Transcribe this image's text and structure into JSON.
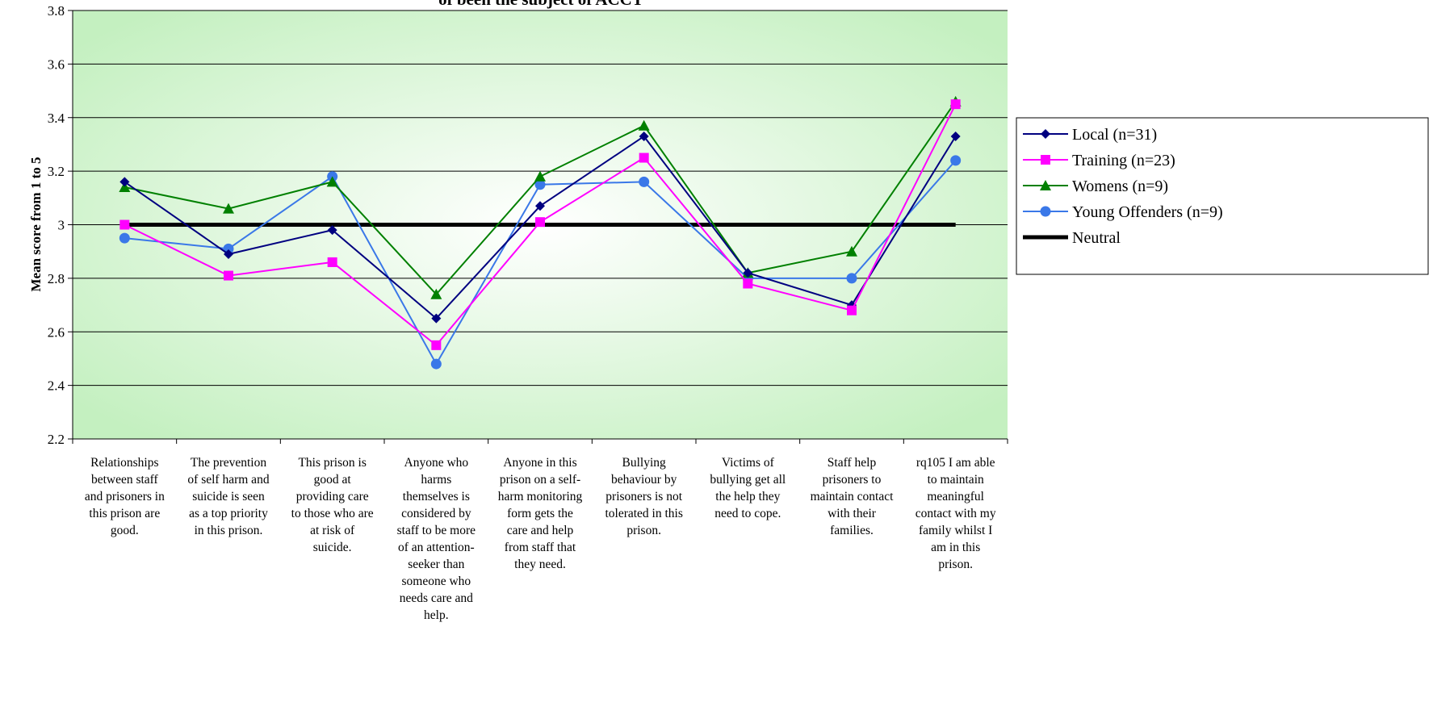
{
  "chart_data": {
    "type": "line",
    "title": "of been the subject of ACCT",
    "xlabel": "",
    "ylabel": "Mean score from 1 to 5",
    "ylim": [
      2.2,
      3.8
    ],
    "yticks": [
      "2.2",
      "2.4",
      "2.6",
      "2.8",
      "3",
      "3.2",
      "3.4",
      "3.6",
      "3.8"
    ],
    "grid": true,
    "legend_position": "right",
    "categories": [
      "Relationships between staff and prisoners in this prison are good.",
      "The prevention of self harm and suicide is seen as a top priority in this prison.",
      "This prison is good at providing care to those who are at risk of suicide.",
      "Anyone who harms themselves is considered by staff to be more of an attention-seeker than someone who needs care and help.",
      "Anyone in this prison on a self-harm monitoring form gets the care and help from staff that they need.",
      "Bullying behaviour by prisoners is not tolerated in this prison.",
      "Victims of bullying get all the help they need to cope.",
      "Staff help prisoners to maintain contact with their families.",
      "rq105 I am able to maintain meaningful contact with my family whilst I am in this prison."
    ],
    "category_lines": [
      [
        "Relationships",
        "between staff",
        "and prisoners in",
        "this prison are",
        "good."
      ],
      [
        "The prevention",
        "of self harm and",
        "suicide is seen",
        "as a top priority",
        "in this prison."
      ],
      [
        "This prison is",
        "good at",
        "providing care",
        "to those who are",
        "at risk of",
        "suicide."
      ],
      [
        "Anyone who",
        "harms",
        "themselves is",
        "considered by",
        "staff to be more",
        "of an attention-",
        "seeker than",
        "someone who",
        "needs care and",
        "help."
      ],
      [
        "Anyone in this",
        "prison on a self-",
        "harm monitoring",
        "form gets the",
        "care and help",
        "from staff that",
        "they need."
      ],
      [
        "Bullying",
        "behaviour by",
        "prisoners is not",
        "tolerated in this",
        "prison."
      ],
      [
        "Victims of",
        "bullying get all",
        "the help they",
        "need to cope."
      ],
      [
        "Staff help",
        "prisoners to",
        "maintain contact",
        "with their",
        "families."
      ],
      [
        "rq105 I am able",
        "to maintain",
        "meaningful",
        "contact with my",
        "family whilst I",
        "am in this",
        "prison."
      ]
    ],
    "series": [
      {
        "name": "Local (n=31)",
        "color": "#000080",
        "marker": "diamond",
        "values": [
          3.16,
          2.89,
          2.98,
          2.65,
          3.07,
          3.33,
          2.82,
          2.7,
          3.33
        ]
      },
      {
        "name": "Training (n=23)",
        "color": "#ff00ff",
        "marker": "square",
        "values": [
          3.0,
          2.81,
          2.86,
          2.55,
          3.01,
          3.25,
          2.78,
          2.68,
          3.45
        ]
      },
      {
        "name": "Womens (n=9)",
        "color": "#008000",
        "marker": "triangle",
        "values": [
          3.14,
          3.06,
          3.16,
          2.74,
          3.18,
          3.37,
          2.82,
          2.9,
          3.46
        ]
      },
      {
        "name": "Young Offenders (n=9)",
        "color": "#3a78e8",
        "marker": "circle",
        "values": [
          2.95,
          2.91,
          3.18,
          2.48,
          3.15,
          3.16,
          2.8,
          2.8,
          3.24
        ]
      },
      {
        "name": "Neutral",
        "color": "#000000",
        "marker": "none",
        "values": [
          3,
          3,
          3,
          3,
          3,
          3,
          3,
          3,
          3
        ]
      }
    ]
  }
}
